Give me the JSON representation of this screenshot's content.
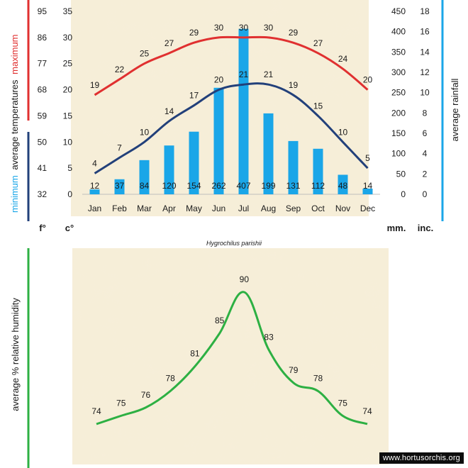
{
  "caption": "Hygrochilus parishii",
  "credit": "www.hortusorchis.org",
  "colors": {
    "panel_bg": "#f6eed8",
    "maximum": "#e03030",
    "minimum": "#22407a",
    "rainfall": "#1aa6e8",
    "humidity": "#2db043"
  },
  "chart_data": [
    {
      "type": "bar",
      "categories": [
        "Jan",
        "Feb",
        "Mar",
        "Apr",
        "May",
        "Jun",
        "Jul",
        "Aug",
        "Sep",
        "Oct",
        "Nov",
        "Dec"
      ],
      "series": [
        {
          "name": "maximum",
          "values": [
            19,
            22,
            25,
            27,
            29,
            30,
            30,
            30,
            29,
            27,
            24,
            20
          ]
        },
        {
          "name": "minimum",
          "values": [
            4,
            7,
            10,
            14,
            17,
            20,
            21,
            21,
            19,
            15,
            10,
            5
          ]
        },
        {
          "name": "average rainfall",
          "values": [
            12,
            37,
            84,
            120,
            154,
            262,
            407,
            199,
            131,
            112,
            48,
            14
          ]
        }
      ],
      "axes": {
        "fahrenheit": {
          "unit": "f°",
          "ticks": [
            "95",
            "86",
            "77",
            "68",
            "59",
            "50",
            "41",
            "32"
          ],
          "range": [
            32,
            95
          ]
        },
        "celsius": {
          "unit": "c°",
          "ticks": [
            "35",
            "30",
            "25",
            "20",
            "15",
            "10",
            "5",
            "0"
          ],
          "range": [
            0,
            35
          ]
        },
        "mm": {
          "unit": "mm.",
          "ticks": [
            "450",
            "400",
            "350",
            "300",
            "250",
            "200",
            "150",
            "100",
            "50",
            "0"
          ],
          "range": [
            0,
            450
          ]
        },
        "inches": {
          "unit": "inc.",
          "ticks": [
            "18",
            "16",
            "14",
            "12",
            "10",
            "8",
            "6",
            "4",
            "2",
            "0"
          ],
          "range": [
            0,
            18
          ]
        }
      },
      "labels": {
        "maximum": "maximum",
        "average_temperatures": "average  temperatures",
        "minimum": "minimum",
        "average_rainfall": "average rainfall"
      }
    },
    {
      "type": "line",
      "categories": [
        "Jan",
        "Feb",
        "Mar",
        "Apr",
        "May",
        "Jun",
        "Jul",
        "Aug",
        "Sep",
        "Oct",
        "Nov",
        "Dec"
      ],
      "series": [
        {
          "name": "average % relative humidity",
          "values": [
            74,
            75,
            76,
            78,
            81,
            85,
            90,
            83,
            79,
            78,
            75,
            74
          ]
        }
      ],
      "ylabel": "average %  relative humidity"
    }
  ]
}
